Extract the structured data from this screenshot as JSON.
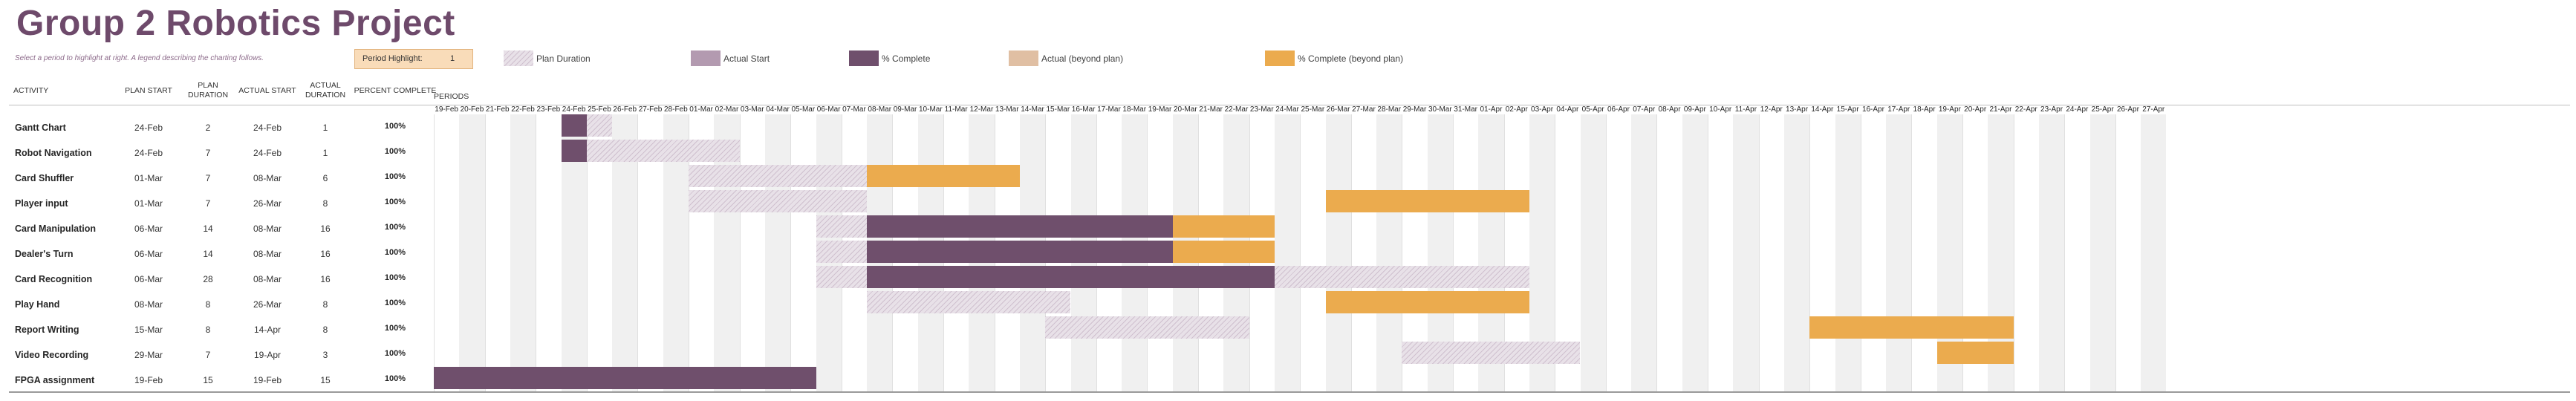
{
  "title": "Group 2 Robotics Project",
  "subtitle": "Select a period to highlight at right.  A legend describing the charting follows.",
  "period_highlight": {
    "label": "Period Highlight:",
    "value": "1"
  },
  "legend": [
    {
      "label": "Plan Duration",
      "color": "#e8e1e8",
      "kind": "plan"
    },
    {
      "label": "Actual Start",
      "color": "#b39ab0",
      "kind": "actual"
    },
    {
      "label": "% Complete",
      "color": "#6f4f6c",
      "kind": "complete"
    },
    {
      "label": "Actual (beyond plan)",
      "color": "#e0bfa3",
      "kind": "beyond-actual"
    },
    {
      "label": "% Complete (beyond plan)",
      "color": "#ebab4e",
      "kind": "beyond"
    }
  ],
  "headers": {
    "activity": "ACTIVITY",
    "plan_start": "PLAN START",
    "plan_duration": "PLAN DURATION",
    "actual_start": "ACTUAL START",
    "actual_duration": "ACTUAL DURATION",
    "percent_complete": "PERCENT COMPLETE",
    "periods": "PERIODS"
  },
  "days": [
    "19-Feb",
    "20-Feb",
    "21-Feb",
    "22-Feb",
    "23-Feb",
    "24-Feb",
    "25-Feb",
    "26-Feb",
    "27-Feb",
    "28-Feb",
    "01-Mar",
    "02-Mar",
    "03-Mar",
    "04-Mar",
    "05-Mar",
    "06-Mar",
    "07-Mar",
    "08-Mar",
    "09-Mar",
    "10-Mar",
    "11-Mar",
    "12-Mar",
    "13-Mar",
    "14-Mar",
    "15-Mar",
    "16-Mar",
    "17-Mar",
    "18-Mar",
    "19-Mar",
    "20-Mar",
    "21-Mar",
    "22-Mar",
    "23-Mar",
    "24-Mar",
    "25-Mar",
    "26-Mar",
    "27-Mar",
    "28-Mar",
    "29-Mar",
    "30-Mar",
    "31-Mar",
    "01-Apr",
    "02-Apr",
    "03-Apr",
    "04-Apr",
    "05-Apr",
    "06-Apr",
    "07-Apr",
    "08-Apr",
    "09-Apr",
    "10-Apr",
    "11-Apr",
    "12-Apr",
    "13-Apr",
    "14-Apr",
    "15-Apr",
    "16-Apr",
    "17-Apr",
    "18-Apr",
    "19-Apr",
    "20-Apr",
    "21-Apr",
    "22-Apr",
    "23-Apr",
    "24-Apr",
    "25-Apr",
    "26-Apr",
    "27-Apr"
  ],
  "activities": [
    {
      "name": "Gantt Chart",
      "plan_start": "24-Feb",
      "plan_duration": "2",
      "actual_start": "24-Feb",
      "actual_duration": "1",
      "percent": "100%",
      "ps": 5,
      "pd": 2,
      "as": 5,
      "ad": 1
    },
    {
      "name": "Robot Navigation",
      "plan_start": "24-Feb",
      "plan_duration": "7",
      "actual_start": "24-Feb",
      "actual_duration": "1",
      "percent": "100%",
      "ps": 5,
      "pd": 7,
      "as": 5,
      "ad": 1
    },
    {
      "name": "Card Shuffler",
      "plan_start": "01-Mar",
      "plan_duration": "7",
      "actual_start": "08-Mar",
      "actual_duration": "6",
      "percent": "100%",
      "ps": 10,
      "pd": 7,
      "as": 17,
      "ad": 6
    },
    {
      "name": "Player input",
      "plan_start": "01-Mar",
      "plan_duration": "7",
      "actual_start": "26-Mar",
      "actual_duration": "8",
      "percent": "100%",
      "ps": 10,
      "pd": 7,
      "as": 35,
      "ad": 8
    },
    {
      "name": "Card Manipulation",
      "plan_start": "06-Mar",
      "plan_duration": "14",
      "actual_start": "08-Mar",
      "actual_duration": "16",
      "percent": "100%",
      "ps": 15,
      "pd": 14,
      "as": 17,
      "ad": 16
    },
    {
      "name": "Dealer's Turn",
      "plan_start": "06-Mar",
      "plan_duration": "14",
      "actual_start": "08-Mar",
      "actual_duration": "16",
      "percent": "100%",
      "ps": 15,
      "pd": 14,
      "as": 17,
      "ad": 16
    },
    {
      "name": "Card Recognition",
      "plan_start": "06-Mar",
      "plan_duration": "28",
      "actual_start": "08-Mar",
      "actual_duration": "16",
      "percent": "100%",
      "ps": 15,
      "pd": 28,
      "as": 17,
      "ad": 16
    },
    {
      "name": "Play Hand",
      "plan_start": "08-Mar",
      "plan_duration": "8",
      "actual_start": "26-Mar",
      "actual_duration": "8",
      "percent": "100%",
      "ps": 17,
      "pd": 8,
      "as": 35,
      "ad": 8
    },
    {
      "name": "Report Writing",
      "plan_start": "15-Mar",
      "plan_duration": "8",
      "actual_start": "14-Apr",
      "actual_duration": "8",
      "percent": "100%",
      "ps": 24,
      "pd": 8,
      "as": 54,
      "ad": 8
    },
    {
      "name": "Video Recording",
      "plan_start": "29-Mar",
      "plan_duration": "7",
      "actual_start": "19-Apr",
      "actual_duration": "3",
      "percent": "100%",
      "ps": 38,
      "pd": 7,
      "as": 59,
      "ad": 3
    },
    {
      "name": "FPGA assignment",
      "plan_start": "19-Feb",
      "plan_duration": "15",
      "actual_start": "19-Feb",
      "actual_duration": "15",
      "percent": "100%",
      "ps": 0,
      "pd": 15,
      "as": 0,
      "ad": 15
    }
  ]
}
